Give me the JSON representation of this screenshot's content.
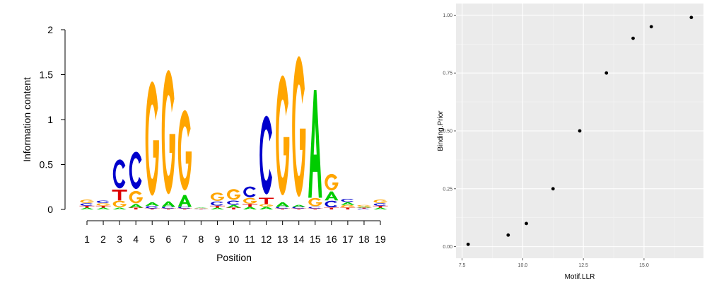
{
  "chart_data": [
    {
      "type": "sequence-logo",
      "ylabel": "Information content",
      "xlabel": "Position",
      "ylim": [
        0,
        2
      ],
      "yticks": [
        "0",
        "0.5",
        "1",
        "1.5",
        "2"
      ],
      "positions": [
        "1",
        "2",
        "3",
        "4",
        "5",
        "6",
        "7",
        "8",
        "9",
        "10",
        "11",
        "12",
        "13",
        "14",
        "15",
        "16",
        "17",
        "18",
        "19"
      ],
      "colors": {
        "A": "#00cc00",
        "C": "#0000cc",
        "G": "#ffa500",
        "T": "#dd0000"
      },
      "stacks": [
        [
          {
            "letter": "A",
            "bits": 0.02
          },
          {
            "letter": "T",
            "bits": 0.02
          },
          {
            "letter": "C",
            "bits": 0.03
          },
          {
            "letter": "G",
            "bits": 0.04
          }
        ],
        [
          {
            "letter": "A",
            "bits": 0.02
          },
          {
            "letter": "T",
            "bits": 0.02
          },
          {
            "letter": "G",
            "bits": 0.03
          },
          {
            "letter": "C",
            "bits": 0.03
          }
        ],
        [
          {
            "letter": "A",
            "bits": 0.02
          },
          {
            "letter": "G",
            "bits": 0.08
          },
          {
            "letter": "T",
            "bits": 0.12
          },
          {
            "letter": "C",
            "bits": 0.35
          }
        ],
        [
          {
            "letter": "T",
            "bits": 0.02
          },
          {
            "letter": "A",
            "bits": 0.04
          },
          {
            "letter": "G",
            "bits": 0.15
          },
          {
            "letter": "C",
            "bits": 0.45
          }
        ],
        [
          {
            "letter": "T",
            "bits": 0.01
          },
          {
            "letter": "C",
            "bits": 0.03
          },
          {
            "letter": "A",
            "bits": 0.04
          },
          {
            "letter": "G",
            "bits": 1.38
          }
        ],
        [
          {
            "letter": "T",
            "bits": 0.01
          },
          {
            "letter": "C",
            "bits": 0.02
          },
          {
            "letter": "A",
            "bits": 0.06
          },
          {
            "letter": "G",
            "bits": 1.5
          }
        ],
        [
          {
            "letter": "T",
            "bits": 0.01
          },
          {
            "letter": "C",
            "bits": 0.02
          },
          {
            "letter": "A",
            "bits": 0.13
          },
          {
            "letter": "G",
            "bits": 0.97
          }
        ],
        [
          {
            "letter": "T",
            "bits": 0.005
          },
          {
            "letter": "C",
            "bits": 0.005
          },
          {
            "letter": "G",
            "bits": 0.005
          },
          {
            "letter": "A",
            "bits": 0.005
          }
        ],
        [
          {
            "letter": "A",
            "bits": 0.02
          },
          {
            "letter": "T",
            "bits": 0.02
          },
          {
            "letter": "C",
            "bits": 0.05
          },
          {
            "letter": "G",
            "bits": 0.1
          }
        ],
        [
          {
            "letter": "T",
            "bits": 0.02
          },
          {
            "letter": "A",
            "bits": 0.03
          },
          {
            "letter": "C",
            "bits": 0.05
          },
          {
            "letter": "G",
            "bits": 0.13
          }
        ],
        [
          {
            "letter": "A",
            "bits": 0.03
          },
          {
            "letter": "T",
            "bits": 0.03
          },
          {
            "letter": "G",
            "bits": 0.07
          },
          {
            "letter": "C",
            "bits": 0.13
          }
        ],
        [
          {
            "letter": "A",
            "bits": 0.03
          },
          {
            "letter": "G",
            "bits": 0.03
          },
          {
            "letter": "T",
            "bits": 0.07
          },
          {
            "letter": "C",
            "bits": 0.95
          }
        ],
        [
          {
            "letter": "T",
            "bits": 0.01
          },
          {
            "letter": "C",
            "bits": 0.02
          },
          {
            "letter": "A",
            "bits": 0.05
          },
          {
            "letter": "G",
            "bits": 1.45
          }
        ],
        [
          {
            "letter": "T",
            "bits": 0.01
          },
          {
            "letter": "C",
            "bits": 0.02
          },
          {
            "letter": "A",
            "bits": 0.02
          },
          {
            "letter": "G",
            "bits": 1.7
          }
        ],
        [
          {
            "letter": "T",
            "bits": 0.01
          },
          {
            "letter": "C",
            "bits": 0.02
          },
          {
            "letter": "G",
            "bits": 0.1
          },
          {
            "letter": "A",
            "bits": 1.2
          }
        ],
        [
          {
            "letter": "T",
            "bits": 0.02
          },
          {
            "letter": "C",
            "bits": 0.08
          },
          {
            "letter": "A",
            "bits": 0.1
          },
          {
            "letter": "G",
            "bits": 0.2
          }
        ],
        [
          {
            "letter": "T",
            "bits": 0.02
          },
          {
            "letter": "G",
            "bits": 0.03
          },
          {
            "letter": "A",
            "bits": 0.03
          },
          {
            "letter": "C",
            "bits": 0.04
          }
        ],
        [
          {
            "letter": "C",
            "bits": 0.01
          },
          {
            "letter": "T",
            "bits": 0.01
          },
          {
            "letter": "A",
            "bits": 0.01
          },
          {
            "letter": "G",
            "bits": 0.02
          }
        ],
        [
          {
            "letter": "A",
            "bits": 0.02
          },
          {
            "letter": "T",
            "bits": 0.02
          },
          {
            "letter": "C",
            "bits": 0.03
          },
          {
            "letter": "G",
            "bits": 0.04
          }
        ]
      ]
    },
    {
      "type": "scatter",
      "xlabel": "Motif.LLR",
      "ylabel": "Binding.Prior",
      "xlim": [
        7.25,
        17.45
      ],
      "ylim": [
        -0.05,
        1.05
      ],
      "xticks": [
        7.5,
        10.0,
        12.5,
        15.0
      ],
      "xtick_labels": [
        "7.5",
        "10.0",
        "12.5",
        "15.0"
      ],
      "yticks": [
        0,
        0.25,
        0.5,
        0.75,
        1
      ],
      "ytick_labels": [
        "0.00",
        "0.25",
        "0.50",
        "0.75",
        "1.00"
      ],
      "grid": true,
      "point_color": "#000000",
      "panel_color": "#ebebeb",
      "points": [
        {
          "x": 7.75,
          "y": 0.01
        },
        {
          "x": 9.4,
          "y": 0.05
        },
        {
          "x": 10.15,
          "y": 0.1
        },
        {
          "x": 11.25,
          "y": 0.25
        },
        {
          "x": 12.35,
          "y": 0.5
        },
        {
          "x": 13.45,
          "y": 0.75
        },
        {
          "x": 14.55,
          "y": 0.9
        },
        {
          "x": 15.3,
          "y": 0.95
        },
        {
          "x": 16.95,
          "y": 0.99
        }
      ]
    }
  ]
}
